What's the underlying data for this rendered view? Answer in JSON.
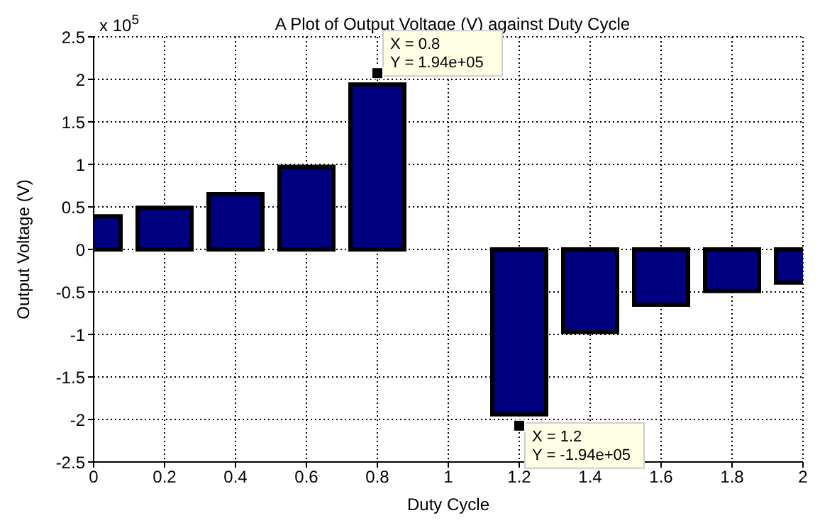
{
  "chart_data": {
    "type": "bar",
    "title": "A Plot of Output Voltage (V) against Duty Cycle",
    "xlabel": "Duty Cycle",
    "ylabel": "Output Voltage (V)",
    "x": [
      0,
      0.2,
      0.4,
      0.6,
      0.8,
      1.0,
      1.2,
      1.4,
      1.6,
      1.8,
      2.0
    ],
    "series": [
      {
        "color": "#000080",
        "values": [
          0.39,
          0.49,
          0.65,
          0.97,
          1.94,
          0,
          -1.94,
          -0.97,
          -0.65,
          -0.49,
          -0.39
        ]
      }
    ],
    "xlim": [
      0,
      2
    ],
    "xticks": [
      0,
      0.2,
      0.4,
      0.6,
      0.8,
      1,
      1.2,
      1.4,
      1.6,
      1.8,
      2
    ],
    "ylim": [
      -2.5,
      2.5
    ],
    "yticks": [
      -2.5,
      -2,
      -1.5,
      -1,
      -0.5,
      0,
      0.5,
      1,
      1.5,
      2,
      2.5
    ],
    "grid": true,
    "annotations": [
      "x 10$^{5}$",
      {
        "text": "X = 0.8\nY = 1.94e+05",
        "x": 0.8,
        "y": 1.94
      },
      {
        "text": "X = 1.2\nY = -1.94e+05",
        "x": 1.2,
        "y": -1.94
      }
    ]
  }
}
